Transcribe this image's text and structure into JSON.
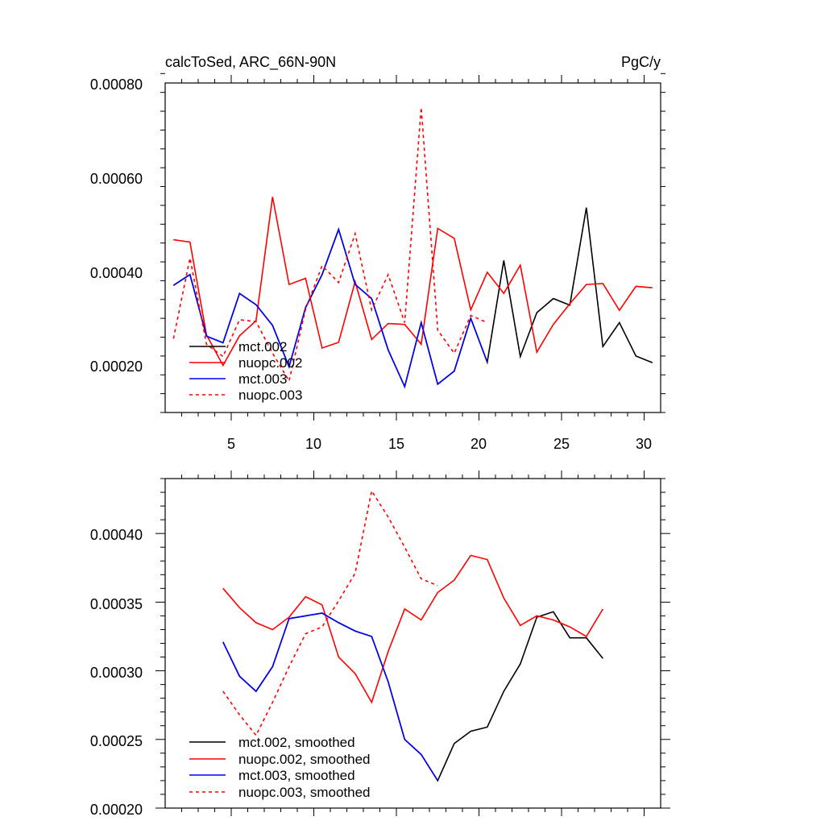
{
  "chart_data": [
    {
      "type": "line",
      "title": "calcToSed, ARC_66N-90N",
      "units": "PgC/y",
      "xlabel": "",
      "ylabel": "",
      "xlim": [
        1,
        31
      ],
      "ylim": [
        0.0001,
        0.0008
      ],
      "xticks": [
        "5",
        "10",
        "15",
        "20",
        "25",
        "30"
      ],
      "yticks": [
        "0.00020",
        "0.00040",
        "0.00060",
        "0.00080"
      ],
      "legend_position": "bottom-left",
      "series": [
        {
          "name": "mct.002",
          "color": "#000000",
          "style": "solid",
          "x": [
            1.5,
            2.5,
            3.5,
            4.5,
            5.5,
            6.5,
            7.5,
            8.5,
            9.5,
            10.5,
            11.5,
            12.5,
            13.5,
            14.5,
            15.5,
            16.5,
            17.5,
            18.5,
            19.5,
            20.5,
            21.5,
            22.5,
            23.5,
            24.5,
            25.5,
            26.5,
            27.5,
            28.5,
            29.5,
            30.5
          ],
          "y": [
            0.00037,
            0.000393,
            0.000262,
            0.000248,
            0.000353,
            0.000329,
            0.000285,
            0.000197,
            0.000323,
            0.000393,
            0.000489,
            0.000372,
            0.000342,
            0.000233,
            0.000155,
            0.000291,
            0.00016,
            0.000188,
            0.0003,
            0.000207,
            0.000423,
            0.000219,
            0.000312,
            0.000342,
            0.000328,
            0.000535,
            0.00024,
            0.000291,
            0.00022,
            0.000206
          ]
        },
        {
          "name": "nuopc.002",
          "color": "#ff0000",
          "style": "solid",
          "x": [
            1.5,
            2.5,
            3.5,
            4.5,
            5.5,
            6.5,
            7.5,
            8.5,
            9.5,
            10.5,
            11.5,
            12.5,
            13.5,
            14.5,
            15.5,
            16.5,
            17.5,
            18.5,
            19.5,
            20.5,
            21.5,
            22.5,
            23.5,
            24.5,
            25.5,
            26.5,
            27.5,
            28.5,
            29.5,
            30.5
          ],
          "y": [
            0.000467,
            0.000462,
            0.000265,
            0.0002,
            0.000263,
            0.000295,
            0.000558,
            0.000372,
            0.000385,
            0.000237,
            0.000249,
            0.000378,
            0.000255,
            0.000289,
            0.000287,
            0.000245,
            0.000491,
            0.00047,
            0.000318,
            0.000398,
            0.000353,
            0.000413,
            0.000228,
            0.000287,
            0.000331,
            0.000372,
            0.000374,
            0.000317,
            0.000368,
            0.000365
          ]
        },
        {
          "name": "mct.003",
          "color": "#0000ff",
          "style": "solid",
          "x": [
            1.5,
            2.5,
            3.5,
            4.5,
            5.5,
            6.5,
            7.5,
            8.5,
            9.5,
            10.5,
            11.5,
            12.5,
            13.5,
            14.5,
            15.5,
            16.5,
            17.5,
            18.5,
            19.5,
            20.5
          ],
          "y": [
            0.00037,
            0.000393,
            0.000262,
            0.000248,
            0.000353,
            0.000329,
            0.000285,
            0.000197,
            0.000323,
            0.000393,
            0.000489,
            0.000372,
            0.000342,
            0.000233,
            0.000155,
            0.000291,
            0.00016,
            0.000188,
            0.0003,
            0.000207
          ]
        },
        {
          "name": "nuopc.003",
          "color": "#ff0000",
          "style": "dashed",
          "x": [
            1.5,
            2.5,
            3.5,
            4.5,
            5.5,
            6.5,
            7.5,
            8.5,
            9.5,
            10.5,
            11.5,
            12.5,
            13.5,
            14.5,
            15.5,
            16.5,
            17.5,
            18.5,
            19.5,
            20.5
          ],
          "y": [
            0.000257,
            0.000428,
            0.000245,
            0.000219,
            0.000297,
            0.000293,
            0.000226,
            0.000167,
            0.000319,
            0.000412,
            0.000376,
            0.00048,
            0.000318,
            0.000393,
            0.000291,
            0.000748,
            0.000275,
            0.000226,
            0.000306,
            0.000291
          ]
        }
      ]
    },
    {
      "type": "line",
      "title": "",
      "xlabel": "",
      "ylabel": "",
      "xlim": [
        1,
        31
      ],
      "ylim": [
        0.0002,
        0.00044
      ],
      "xticks": [
        "5",
        "10",
        "15",
        "20",
        "25",
        "30"
      ],
      "yticks": [
        "0.00020",
        "0.00025",
        "0.00030",
        "0.00035",
        "0.00040"
      ],
      "legend_position": "bottom-left",
      "series": [
        {
          "name": "mct.002, smoothed",
          "color": "#000000",
          "style": "solid",
          "x": [
            4.5,
            5.5,
            6.5,
            7.5,
            8.5,
            9.5,
            10.5,
            11.5,
            12.5,
            13.5,
            14.5,
            15.5,
            16.5,
            17.5,
            18.5,
            19.5,
            20.5,
            21.5,
            22.5,
            23.5,
            24.5,
            25.5,
            26.5,
            27.5
          ],
          "y": [
            0.000321,
            0.000296,
            0.000285,
            0.000303,
            0.000338,
            0.00034,
            0.000342,
            0.000335,
            0.000329,
            0.000325,
            0.000292,
            0.00025,
            0.000239,
            0.00022,
            0.000247,
            0.000256,
            0.000259,
            0.000285,
            0.000305,
            0.000339,
            0.000343,
            0.000324,
            0.000324,
            0.000309
          ]
        },
        {
          "name": "nuopc.002, smoothed",
          "color": "#ff0000",
          "style": "solid",
          "x": [
            4.5,
            5.5,
            6.5,
            7.5,
            8.5,
            9.5,
            10.5,
            11.5,
            12.5,
            13.5,
            14.5,
            15.5,
            16.5,
            17.5,
            18.5,
            19.5,
            20.5,
            21.5,
            22.5,
            23.5,
            24.5,
            25.5,
            26.5,
            27.5
          ],
          "y": [
            0.00036,
            0.000346,
            0.000335,
            0.00033,
            0.000339,
            0.000354,
            0.000348,
            0.00031,
            0.000298,
            0.000277,
            0.000314,
            0.000345,
            0.000337,
            0.000357,
            0.000366,
            0.000384,
            0.000381,
            0.000353,
            0.000333,
            0.00034,
            0.000337,
            0.000332,
            0.000325,
            0.000345
          ]
        },
        {
          "name": "mct.003, smoothed",
          "color": "#0000ff",
          "style": "solid",
          "x": [
            4.5,
            5.5,
            6.5,
            7.5,
            8.5,
            9.5,
            10.5,
            11.5,
            12.5,
            13.5,
            14.5,
            15.5,
            16.5,
            17.5
          ],
          "y": [
            0.000321,
            0.000296,
            0.000285,
            0.000303,
            0.000338,
            0.00034,
            0.000342,
            0.000335,
            0.000329,
            0.000325,
            0.000292,
            0.00025,
            0.000239,
            0.00022
          ]
        },
        {
          "name": "nuopc.003, smoothed",
          "color": "#ff0000",
          "style": "dashed",
          "x": [
            4.5,
            5.5,
            6.5,
            7.5,
            8.5,
            9.5,
            10.5,
            11.5,
            12.5,
            13.5,
            14.5,
            15.5,
            16.5,
            17.5
          ],
          "y": [
            0.000285,
            0.000268,
            0.000253,
            0.000277,
            0.000303,
            0.000327,
            0.000332,
            0.000351,
            0.000371,
            0.000431,
            0.000412,
            0.00039,
            0.000367,
            0.000362
          ]
        }
      ]
    }
  ]
}
